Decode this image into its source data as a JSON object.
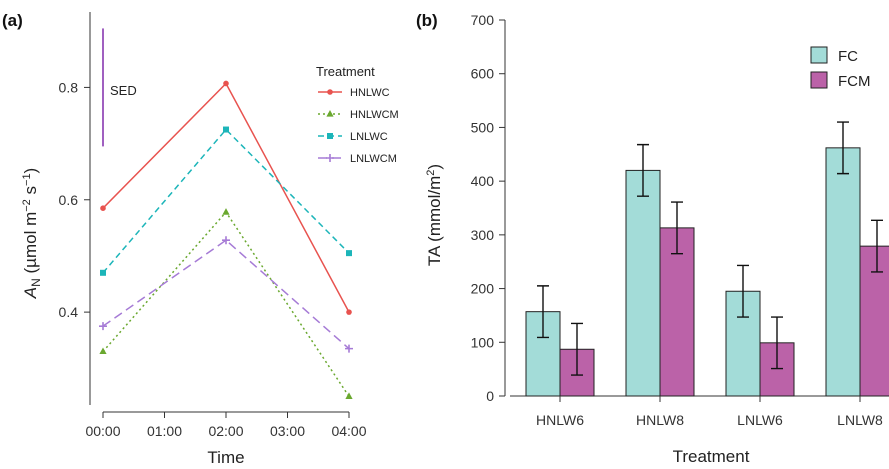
{
  "chart_data": [
    {
      "panel": "(a)",
      "type": "line",
      "xlabel": "Time",
      "ylabel_main": "A",
      "ylabel_sub": "N",
      "ylabel_unit_pre": " (µmol m",
      "ylabel_exp1": "−2",
      "ylabel_mid": " s",
      "ylabel_exp2": "−1",
      "ylabel_close": ")",
      "categories": [
        "00:00",
        "01:00",
        "02:00",
        "03:00",
        "04:00"
      ],
      "x": [
        "00:00",
        "02:00",
        "04:00"
      ],
      "ylim": [
        0.24,
        0.92
      ],
      "yticks": [
        0.4,
        0.6,
        0.8
      ],
      "ytick_labels": [
        "0.4",
        "0.6",
        "0.8"
      ],
      "legend_title": "Treatment",
      "legend_position": "right",
      "series": [
        {
          "name": "HNLWC",
          "values": [
            0.585,
            0.807,
            0.4
          ],
          "color": "#e8534f",
          "dash": "solid",
          "marker": "circle"
        },
        {
          "name": "HNLWCM",
          "values": [
            0.33,
            0.578,
            0.25
          ],
          "color": "#6aa82f",
          "dash": "dotted",
          "marker": "triangle"
        },
        {
          "name": "LNLWC",
          "values": [
            0.47,
            0.725,
            0.505
          ],
          "color": "#1cb5b9",
          "dash": "dashed",
          "marker": "square"
        },
        {
          "name": "LNLWCM",
          "values": [
            0.375,
            0.528,
            0.335
          ],
          "color": "#a67bd6",
          "dash": "longdash",
          "marker": "plus"
        }
      ],
      "sed": {
        "label": "SED",
        "y_from": 0.695,
        "y_to": 0.905,
        "color": "#a060c0"
      },
      "grid": false
    },
    {
      "panel": "(b)",
      "type": "bar",
      "xlabel": "Treatment",
      "ylabel_pre": "TA (mmol/m",
      "ylabel_exp": "2",
      "ylabel_close": ")",
      "categories": [
        "HNLW6",
        "HNLW8",
        "LNLW6",
        "LNLW8"
      ],
      "ylim": [
        0,
        700
      ],
      "yticks": [
        0,
        100,
        200,
        300,
        400,
        500,
        600,
        700
      ],
      "legend_position": "top-right",
      "series": [
        {
          "name": "FC",
          "values": [
            157,
            420,
            195,
            462
          ],
          "errors": [
            48,
            48,
            48,
            48
          ],
          "color": "#a3dcd8"
        },
        {
          "name": "FCM",
          "values": [
            87,
            313,
            99,
            279
          ],
          "errors": [
            48,
            48,
            48,
            48
          ],
          "color": "#bb62a8"
        }
      ],
      "grid": false
    }
  ]
}
